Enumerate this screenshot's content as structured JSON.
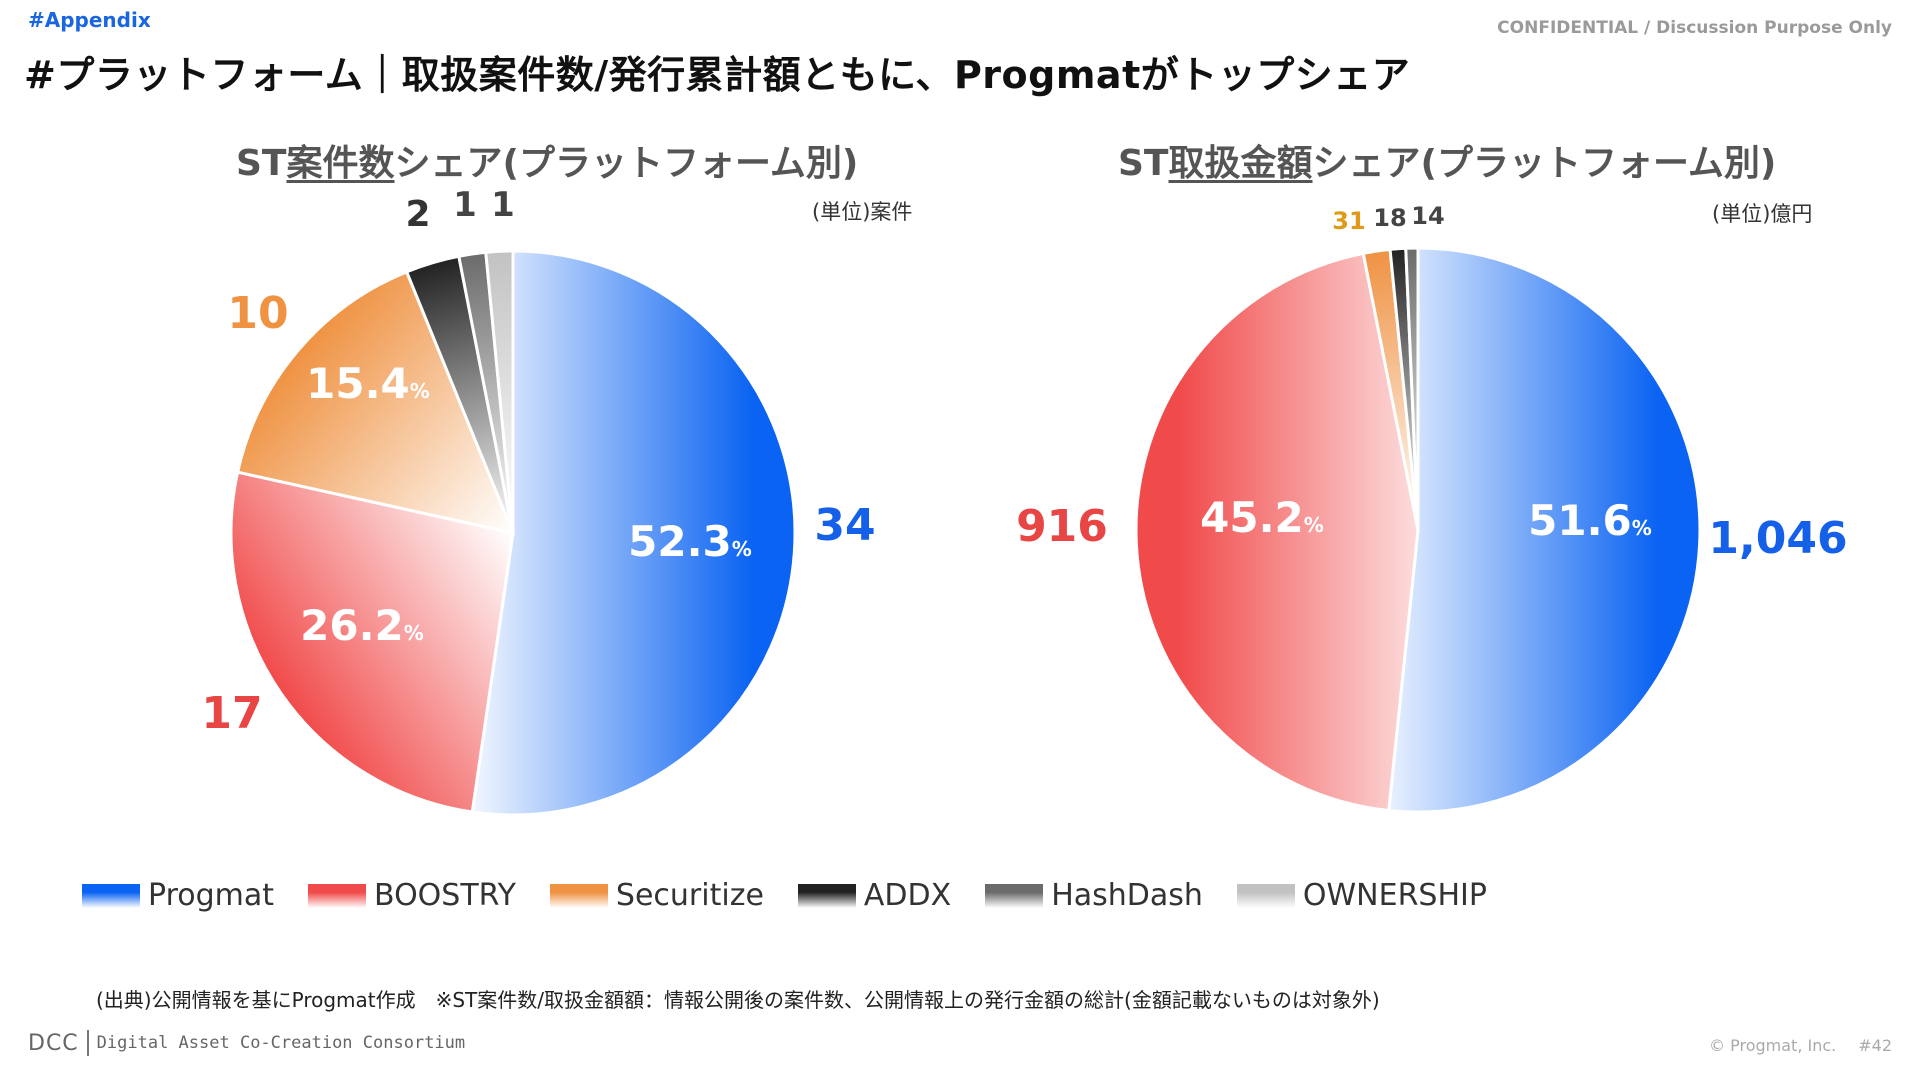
{
  "header": {
    "tag": "#Appendix",
    "confidential": "CONFIDENTIAL / Discussion Purpose Only",
    "title": "#プラットフォーム｜取扱案件数/発行累計額ともに、Progmatがトップシェア"
  },
  "colors": {
    "Progmat": "#0a63f2",
    "BOOSTRY": "#f14a4a",
    "Securitize": "#ef9242",
    "ADDX": "#222222",
    "HashDash": "#6b6b6b",
    "OWNERSHIP": "#c2c2c2"
  },
  "chart_data": [
    {
      "type": "pie",
      "title_prefix": "ST",
      "title_underlined": "案件数",
      "title_suffix": "シェア(プラットフォーム別)",
      "unit": "(単位)案件",
      "categories": [
        "Progmat",
        "BOOSTRY",
        "Securitize",
        "ADDX",
        "HashDash",
        "OWNERSHIP"
      ],
      "values": [
        34,
        17,
        10,
        2,
        1,
        1
      ],
      "value_labels": [
        "34",
        "17",
        "10",
        "2",
        "1",
        "1"
      ],
      "pct_labels": [
        "52.3",
        "26.2",
        "15.4",
        "",
        "",
        ""
      ],
      "pct_unit": "%"
    },
    {
      "type": "pie",
      "title_prefix": "ST",
      "title_underlined": "取扱金額",
      "title_suffix": "シェア(プラットフォーム別)",
      "unit": "(単位)億円",
      "categories": [
        "Progmat",
        "BOOSTRY",
        "Securitize",
        "ADDX",
        "HashDash"
      ],
      "values": [
        1046,
        916,
        31,
        18,
        14
      ],
      "value_labels": [
        "1,046",
        "916",
        "31",
        "18",
        "14"
      ],
      "pct_labels": [
        "51.6",
        "45.2",
        "",
        "",
        ""
      ],
      "pct_unit": "%"
    }
  ],
  "legend": [
    {
      "label": "Progmat",
      "key": "Progmat"
    },
    {
      "label": "BOOSTRY",
      "key": "BOOSTRY"
    },
    {
      "label": "Securitize",
      "key": "Securitize"
    },
    {
      "label": "ADDX",
      "key": "ADDX"
    },
    {
      "label": "HashDash",
      "key": "HashDash"
    },
    {
      "label": "OWNERSHIP",
      "key": "OWNERSHIP"
    }
  ],
  "footer": {
    "source": "(出典)公開情報を基にProgmat作成　※ST案件数/取扱金額額：情報公開後の案件数、公開情報上の発行金額の総計(金額記載ないものは対象外)",
    "logo_abbr": "DCC",
    "logo_name": "Digital Asset Co-Creation Consortium",
    "copyright": "© Progmat, Inc.",
    "page": "#42"
  }
}
